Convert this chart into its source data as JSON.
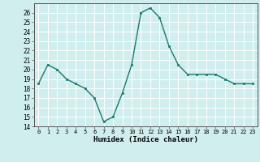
{
  "x": [
    0,
    1,
    2,
    3,
    4,
    5,
    6,
    7,
    8,
    9,
    10,
    11,
    12,
    13,
    14,
    15,
    16,
    17,
    18,
    19,
    20,
    21,
    22,
    23
  ],
  "y": [
    18.5,
    20.5,
    20.0,
    19.0,
    18.5,
    18.0,
    17.0,
    14.5,
    15.0,
    17.5,
    20.5,
    26.0,
    26.5,
    25.5,
    22.5,
    20.5,
    19.5,
    19.5,
    19.5,
    19.5,
    19.0,
    18.5,
    18.5,
    18.5
  ],
  "xlabel": "Humidex (Indice chaleur)",
  "ylim": [
    14,
    27
  ],
  "xlim": [
    -0.5,
    23.5
  ],
  "yticks": [
    14,
    15,
    16,
    17,
    18,
    19,
    20,
    21,
    22,
    23,
    24,
    25,
    26
  ],
  "xticks": [
    0,
    1,
    2,
    3,
    4,
    5,
    6,
    7,
    8,
    9,
    10,
    11,
    12,
    13,
    14,
    15,
    16,
    17,
    18,
    19,
    20,
    21,
    22,
    23
  ],
  "line_color": "#1a7a6e",
  "marker_color": "#1a7a6e",
  "bg_color": "#d0eeee",
  "grid_color": "#ffffff",
  "font_color": "#000000"
}
